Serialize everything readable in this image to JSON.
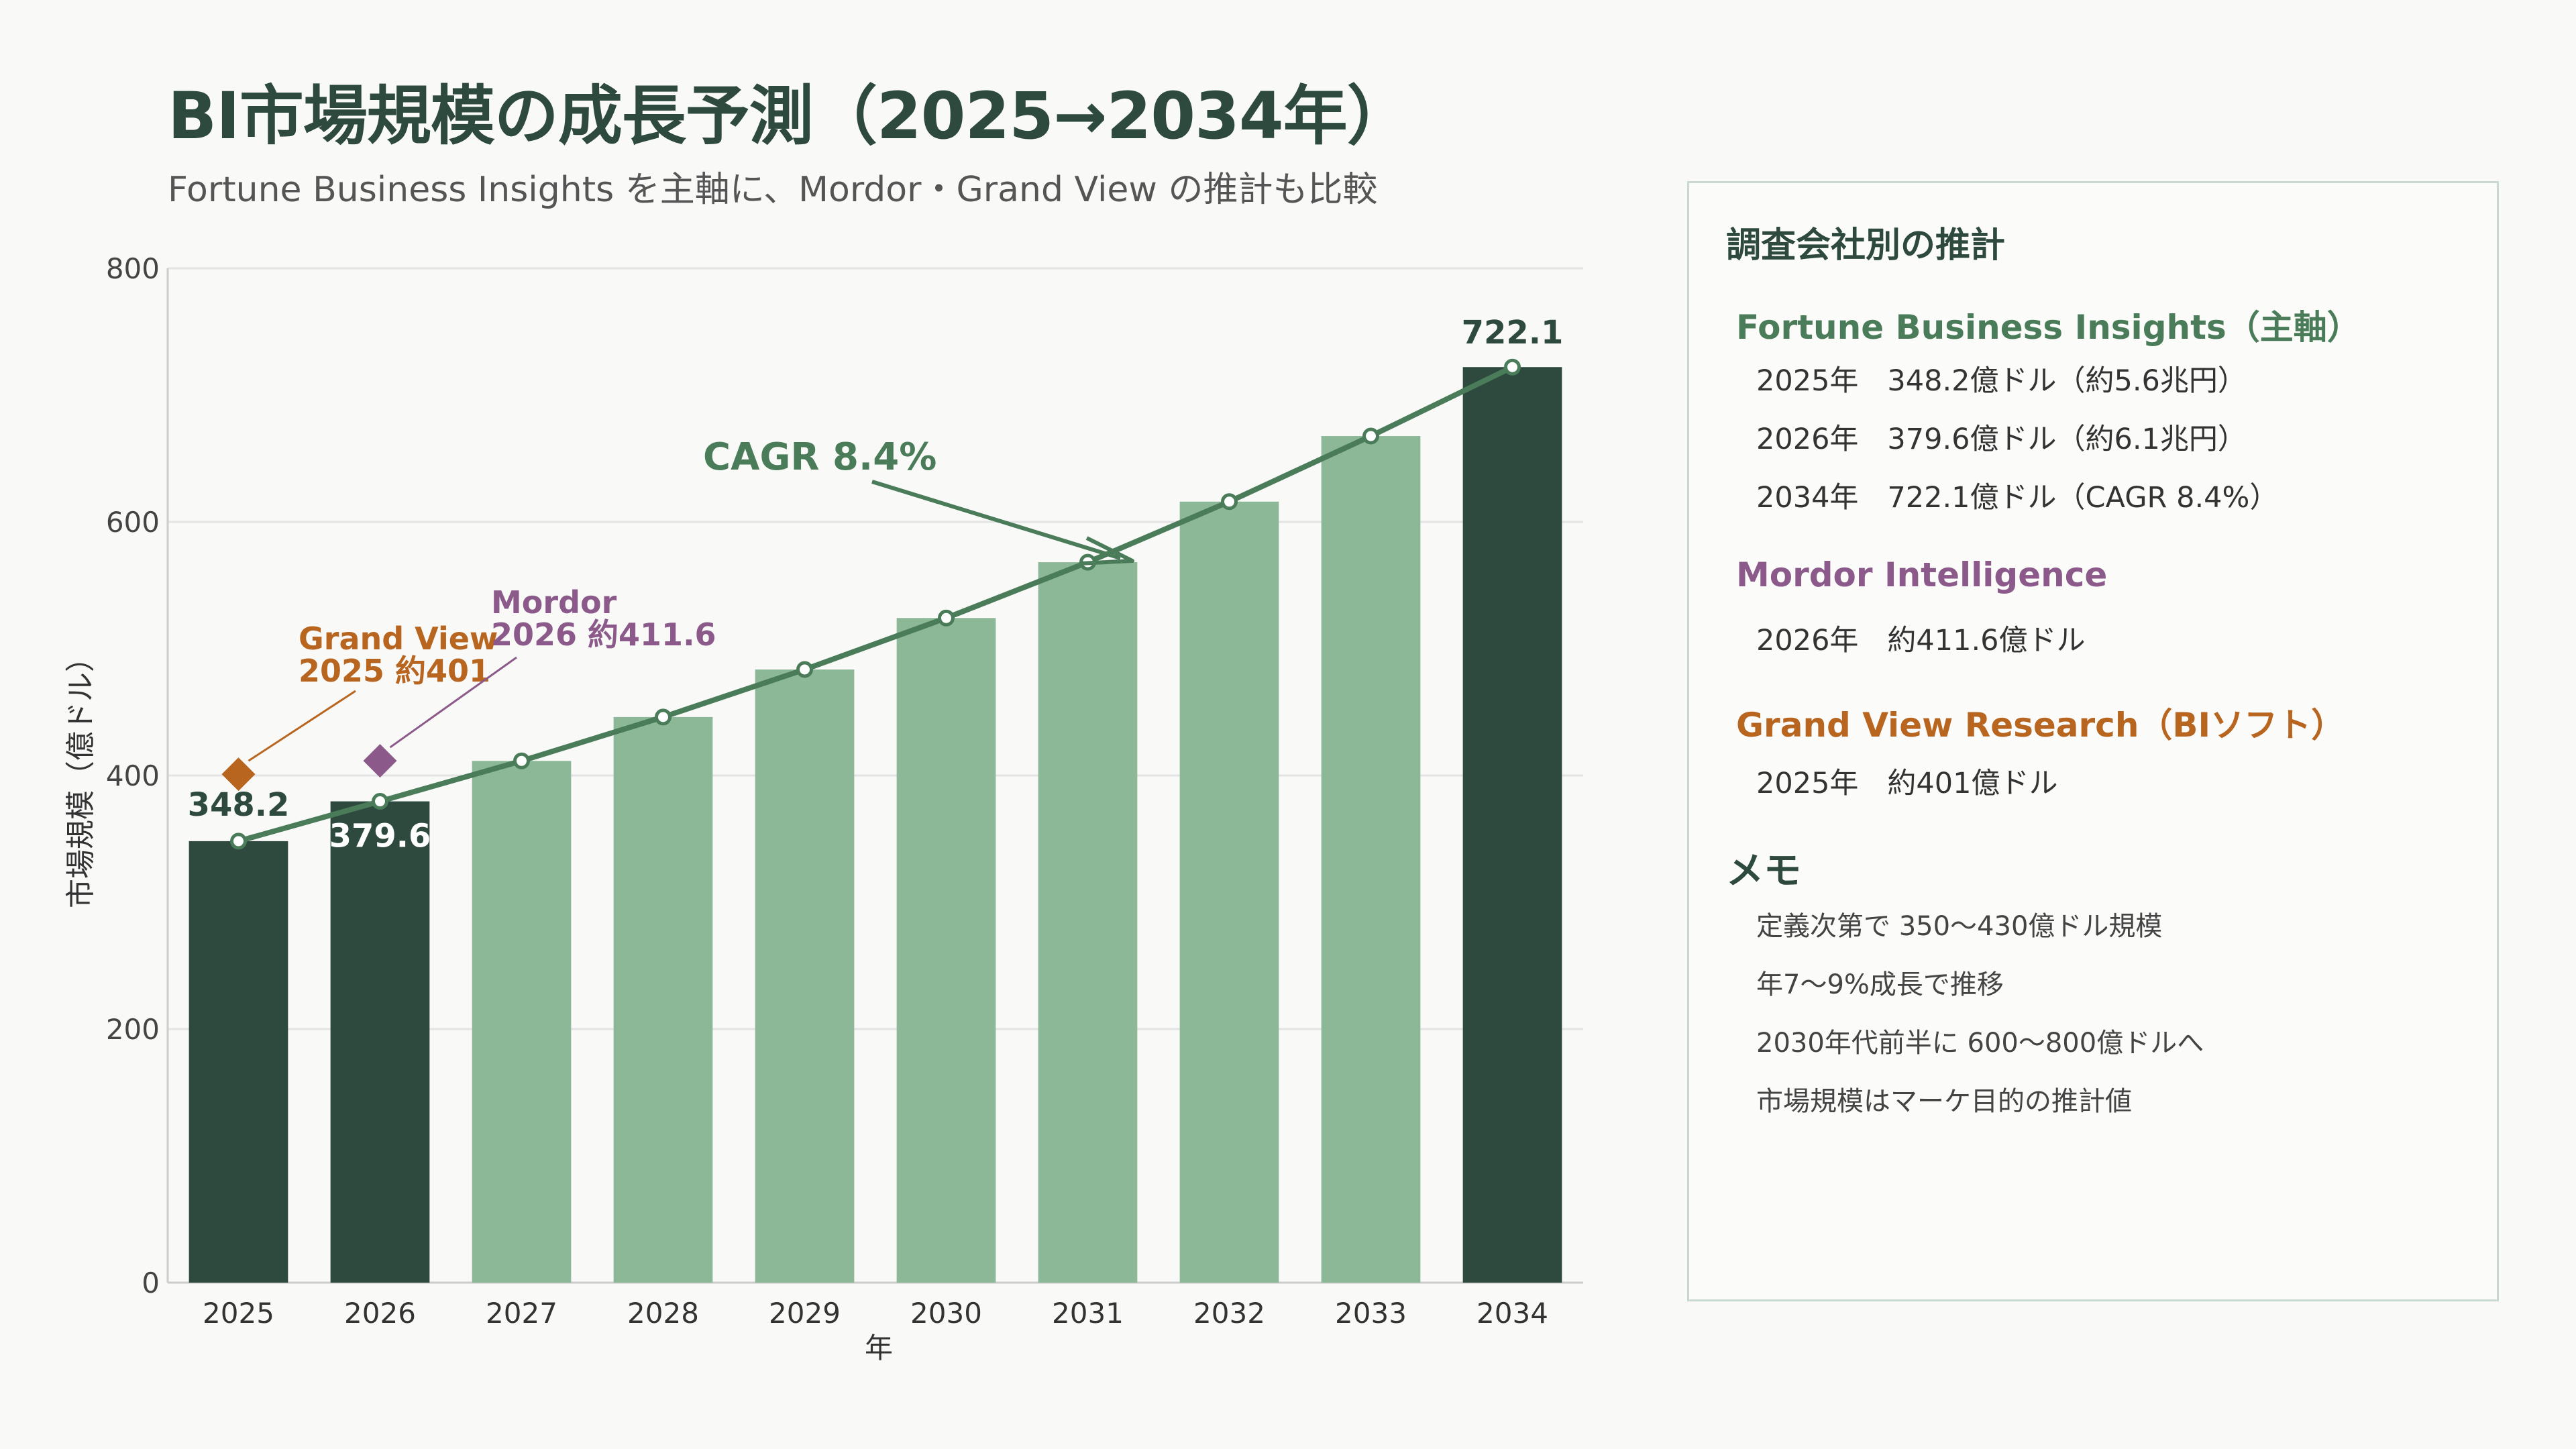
{
  "header": {
    "title": "BI市場規模の成長予測（2025→2034年）",
    "subtitle": "Fortune Business Insights を主軸に、Mordor・Grand View の推計も比較"
  },
  "chart_data": {
    "type": "bar",
    "categories": [
      "2025",
      "2026",
      "2027",
      "2028",
      "2029",
      "2030",
      "2031",
      "2032",
      "2033",
      "2034"
    ],
    "values": [
      348.2,
      379.6,
      411.5,
      446.1,
      483.6,
      524.2,
      568.2,
      616.0,
      667.7,
      722.1
    ],
    "highlight_categories": [
      "2025",
      "2026",
      "2034"
    ],
    "value_labels": {
      "2025": "348.2",
      "2026": "379.6",
      "2034": "722.1"
    },
    "line_series": {
      "values": [
        348.2,
        379.6,
        411.5,
        446.1,
        483.6,
        524.2,
        568.2,
        616.0,
        667.7,
        722.1
      ]
    },
    "xlabel": "年",
    "ylabel": "市場規模（億ドル）",
    "ylim": [
      0,
      800
    ],
    "yticks": [
      0,
      200,
      400,
      600,
      800
    ],
    "grid": true,
    "annotations": {
      "cagr": "CAGR 8.4%",
      "grand_view": {
        "line1": "Grand View",
        "line2": "2025 約401",
        "year": "2025",
        "value": 401
      },
      "mordor": {
        "line1": "Mordor",
        "line2": "2026 約411.6",
        "year": "2026",
        "value": 411.6
      }
    },
    "colors": {
      "highlight_bar": "#2e4a3e",
      "bar": "#8cb897",
      "line": "#4a7c59",
      "grand_view": "#b8651f",
      "mordor": "#8b5a8a",
      "grid": "#e4e4e4",
      "axis": "#cccccc"
    }
  },
  "panel": {
    "title": "調査会社別の推計",
    "fortune": {
      "name": "Fortune Business Insights（主軸）",
      "items": [
        "2025年　348.2億ドル（約5.6兆円）",
        "2026年　379.6億ドル（約6.1兆円）",
        "2034年　722.1億ドル（CAGR 8.4%）"
      ]
    },
    "mordor": {
      "name": "Mordor Intelligence",
      "items": [
        "2026年　約411.6億ドル"
      ]
    },
    "grandview": {
      "name": "Grand View Research（BIソフト）",
      "items": [
        "2025年　約401億ドル"
      ]
    },
    "memo": {
      "title": "メモ",
      "items": [
        "定義次第で 350〜430億ドル規模",
        "年7〜9%成長で推移",
        "2030年代前半に 600〜800億ドルへ",
        "市場規模はマーケ目的の推計値"
      ]
    }
  }
}
